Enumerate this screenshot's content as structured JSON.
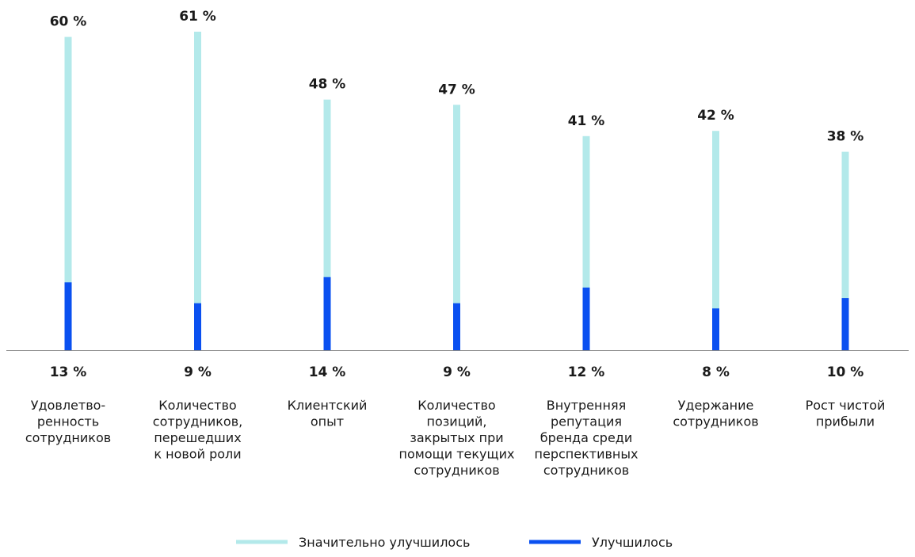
{
  "chart_data": {
    "type": "bar",
    "stacked": "overlay",
    "categories": [
      [
        "Удовлетво-",
        "ренность",
        "сотрудников"
      ],
      [
        "Количество",
        "сотрудников,",
        "перешедших",
        "к новой роли"
      ],
      [
        "Клиентский",
        "опыт"
      ],
      [
        "Количество",
        "позиций,",
        "закрытых при",
        "помощи текущих",
        "сотрудников"
      ],
      [
        "Внутренняя",
        "репутация",
        "бренда среди",
        "перспективных",
        "сотрудников"
      ],
      [
        "Удержание",
        "сотрудников"
      ],
      [
        "Рост чистой",
        "прибыли"
      ]
    ],
    "series": [
      {
        "name": "Значительно улучшилось",
        "values": [
          60,
          61,
          48,
          47,
          41,
          42,
          38
        ],
        "labels": [
          "60 %",
          "61 %",
          "48 %",
          "47 %",
          "41 %",
          "42 %",
          "38 %"
        ],
        "color": "#b3e9ea"
      },
      {
        "name": "Улучшилось",
        "values": [
          13,
          9,
          14,
          9,
          12,
          8,
          10
        ],
        "labels": [
          "13 %",
          "9 %",
          "14 %",
          "9 %",
          "12 %",
          "8 %",
          "10 %"
        ],
        "color": "#0a50f0"
      }
    ],
    "ylim": [
      0,
      61
    ],
    "grid": false,
    "axis_color": "#888888",
    "legend_position": "bottom-center"
  }
}
